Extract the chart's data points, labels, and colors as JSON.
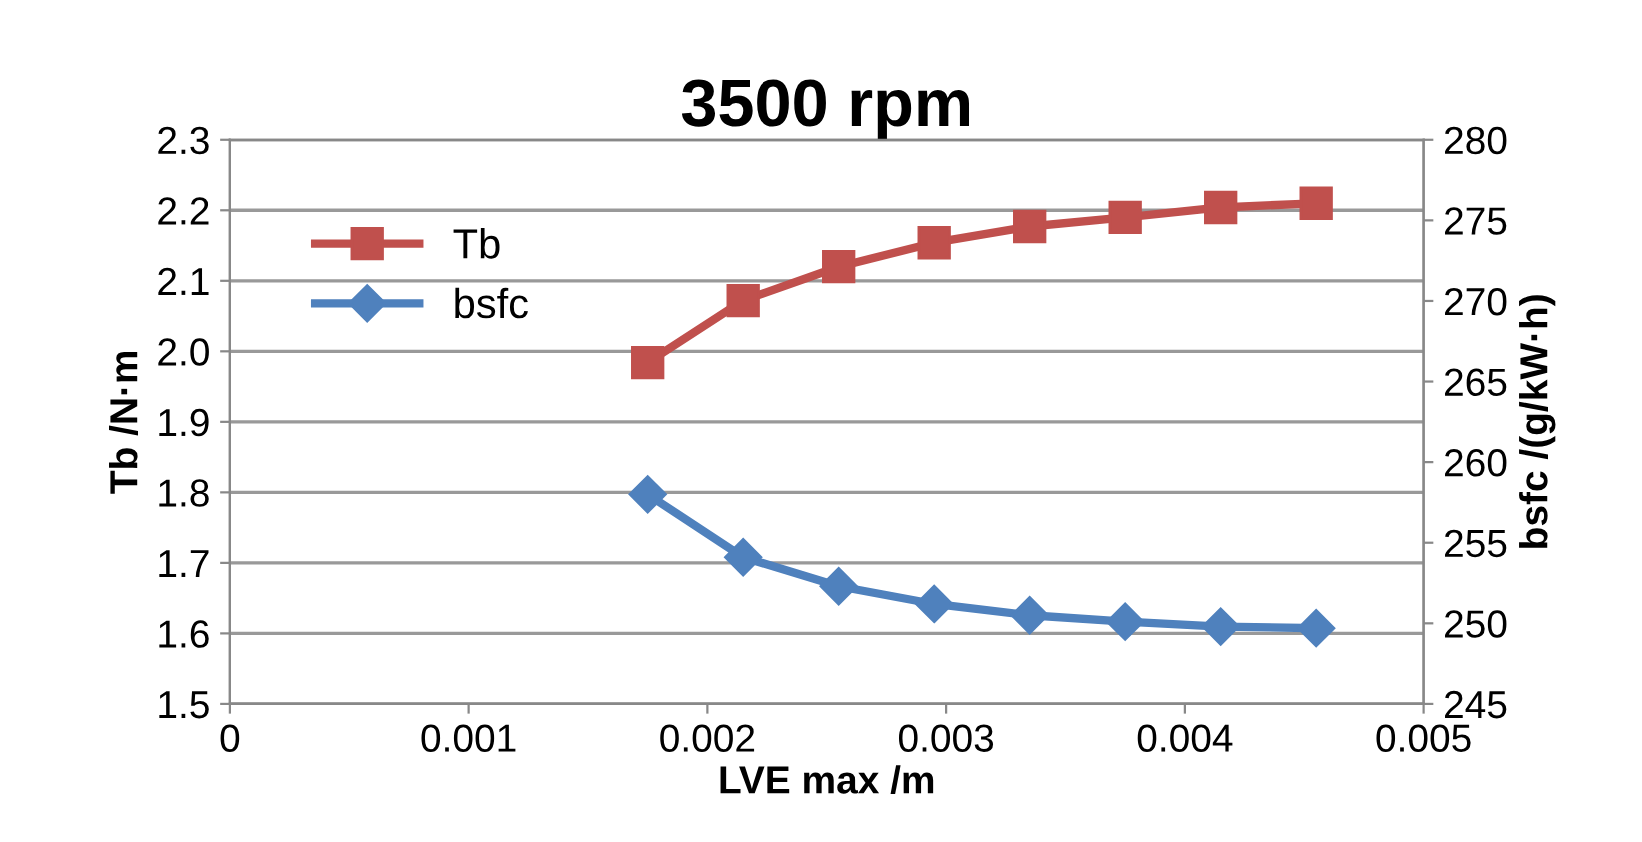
{
  "chart_data": {
    "type": "line",
    "title": "3500 rpm",
    "xlabel": "LVE max /m",
    "ylabel": "Tb /N·m",
    "y2label": "bsfc /(g/kW·h)",
    "x": [
      0.00175,
      0.00215,
      0.00255,
      0.00295,
      0.00335,
      0.00375,
      0.00415,
      0.00455
    ],
    "series": [
      {
        "name": "Tb",
        "color": "#c0504d",
        "marker": "square",
        "values": [
          1.984,
          2.072,
          2.12,
          2.154,
          2.177,
          2.19,
          2.204,
          2.21
        ]
      },
      {
        "name": "bsfc",
        "color": "#4f81bd",
        "marker": "diamond",
        "axis": "y2",
        "values": [
          258.0,
          254.1,
          252.3,
          251.2,
          250.5,
          250.1,
          249.8,
          249.7
        ]
      }
    ],
    "xlim": [
      0,
      0.005
    ],
    "xticks": [
      0,
      0.001,
      0.002,
      0.003,
      0.004,
      0.005
    ],
    "ylim": [
      1.5,
      2.3
    ],
    "yticks": [
      {
        "value": 1.5,
        "label": "1.5"
      },
      {
        "value": 1.6,
        "label": "1.6"
      },
      {
        "value": 1.7,
        "label": "1.7"
      },
      {
        "value": 1.8,
        "label": "1.8"
      },
      {
        "value": 1.9,
        "label": "1.9"
      },
      {
        "value": 2.0,
        "label": "2.0"
      },
      {
        "value": 2.1,
        "label": "2.1"
      },
      {
        "value": 2.2,
        "label": "2.2"
      },
      {
        "value": 2.3,
        "label": "2.3"
      }
    ],
    "y2lim": [
      245,
      280
    ],
    "y2ticks": [
      245,
      250,
      255,
      260,
      265,
      270,
      275,
      280
    ],
    "grid": "y",
    "legend": "top left",
    "line_style": "solid"
  }
}
